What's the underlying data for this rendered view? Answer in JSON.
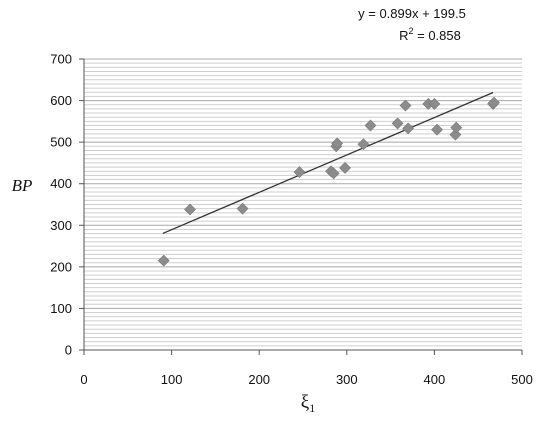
{
  "chart_data": {
    "type": "scatter",
    "title": "",
    "xlabel": "ξ",
    "xlabel_subscript": "1",
    "ylabel": "BP",
    "xlim": [
      0,
      500
    ],
    "ylim": [
      0,
      700
    ],
    "x_ticks": [
      "0",
      "100",
      "200",
      "300",
      "400",
      "500"
    ],
    "y_ticks": [
      "0",
      "100",
      "200",
      "300",
      "400",
      "500",
      "600",
      "700"
    ],
    "grid": true,
    "marker": "diamond",
    "marker_color": "#8c8c8c",
    "trendline": {
      "type": "linear",
      "slope": 0.899,
      "intercept": 199.5,
      "x_range": [
        90,
        467
      ],
      "color": "#333333"
    },
    "annotations": {
      "equation": "y = 0.899x + 199.5",
      "r2_prefix": "R",
      "r2_sup": "2",
      "r2_suffix": " = 0.858"
    },
    "series": [
      {
        "points": [
          [
            91,
            215
          ],
          [
            121,
            338
          ],
          [
            181,
            340
          ],
          [
            246,
            428
          ],
          [
            282,
            430
          ],
          [
            285,
            425
          ],
          [
            288,
            490
          ],
          [
            289,
            497
          ],
          [
            298,
            438
          ],
          [
            319,
            495
          ],
          [
            327,
            540
          ],
          [
            358,
            545
          ],
          [
            367,
            588
          ],
          [
            370,
            533
          ],
          [
            393,
            592
          ],
          [
            400,
            592
          ],
          [
            403,
            530
          ],
          [
            424,
            518
          ],
          [
            425,
            535
          ],
          [
            467,
            592
          ],
          [
            468,
            595
          ]
        ]
      }
    ]
  }
}
